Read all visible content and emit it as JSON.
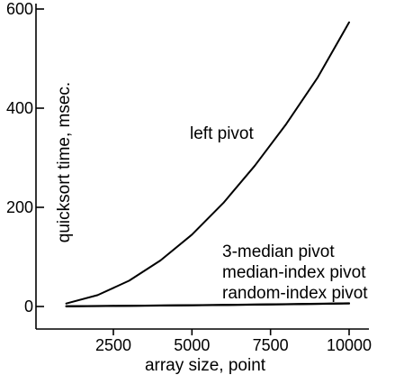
{
  "chart_data": {
    "type": "line",
    "title": "",
    "xlabel": "array size, point",
    "ylabel": "quicksort time, msec.",
    "xlim": [
      0,
      10000
    ],
    "ylim": [
      0,
      600
    ],
    "xticks": [
      2500,
      5000,
      7500,
      10000
    ],
    "yticks": [
      0,
      200,
      400,
      600
    ],
    "grid": false,
    "x": [
      1000,
      2000,
      3000,
      4000,
      5000,
      6000,
      7000,
      8000,
      9000,
      10000
    ],
    "series": [
      {
        "name": "left pivot",
        "values": [
          6,
          23,
          52,
          93,
          145,
          209,
          284,
          368,
          462,
          573
        ]
      },
      {
        "name": "3-median pivot",
        "values": [
          0.4,
          0.8,
          1.3,
          1.8,
          2.4,
          3.0,
          3.7,
          4.4,
          5.2,
          6.0
        ]
      },
      {
        "name": "median-index pivot",
        "values": [
          0.5,
          0.9,
          1.4,
          1.9,
          2.5,
          3.1,
          3.8,
          4.5,
          5.3,
          6.3
        ]
      },
      {
        "name": "random-index pivot",
        "values": [
          0.6,
          1.0,
          1.5,
          2.1,
          2.7,
          3.3,
          4.0,
          4.8,
          5.6,
          6.5
        ]
      }
    ],
    "annotations": [
      "left pivot",
      "3-median pivot",
      "median-index pivot",
      "random-index pivot"
    ]
  }
}
